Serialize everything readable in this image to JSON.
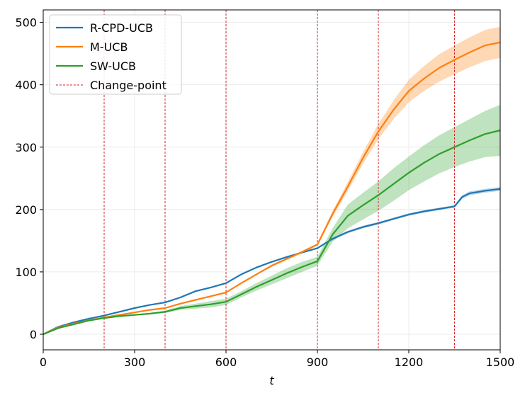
{
  "chart_data": {
    "type": "line",
    "title": "",
    "xlabel": "t",
    "ylabel": "",
    "xlim": [
      0,
      1500
    ],
    "ylim": [
      -25,
      520
    ],
    "x_ticks": [
      0,
      300,
      600,
      900,
      1200,
      1500
    ],
    "x_tick_labels": [
      "0",
      "300",
      "600",
      "900",
      "1200",
      "1500"
    ],
    "y_ticks": [
      0,
      100,
      200,
      300,
      400,
      500
    ],
    "y_tick_labels": [
      "0",
      "100",
      "200",
      "300",
      "400",
      "500"
    ],
    "grid": true,
    "legend_position": "top-left",
    "change_point_label": "Change-point",
    "change_point_color": "#d62728",
    "change_points": [
      200,
      400,
      600,
      900,
      1100,
      1350
    ],
    "series": [
      {
        "name": "R-CPD-UCB",
        "color": "#1f77b4",
        "x": [
          0,
          50,
          100,
          150,
          200,
          250,
          300,
          350,
          400,
          450,
          500,
          550,
          600,
          650,
          700,
          750,
          800,
          850,
          900,
          950,
          1000,
          1050,
          1100,
          1150,
          1200,
          1250,
          1300,
          1350,
          1375,
          1400,
          1450,
          1500
        ],
        "y": [
          0,
          12,
          19,
          25,
          30,
          36,
          42,
          47,
          51,
          59,
          69,
          75,
          82,
          96,
          107,
          116,
          124,
          131,
          138,
          153,
          164,
          172,
          178,
          185,
          192,
          197,
          201,
          205,
          220,
          226,
          230,
          233
        ],
        "lower": [
          0,
          11,
          18,
          24,
          29,
          35,
          41,
          46,
          50,
          58,
          68,
          74,
          81,
          95,
          106,
          115,
          123,
          130,
          137,
          151,
          162,
          170,
          176,
          183,
          190,
          195,
          199,
          203,
          217,
          223,
          227,
          230
        ],
        "upper": [
          0,
          13,
          20,
          26,
          31,
          37,
          43,
          48,
          52,
          60,
          70,
          76,
          83,
          97,
          108,
          117,
          125,
          132,
          139,
          155,
          166,
          174,
          180,
          187,
          194,
          199,
          203,
          207,
          223,
          229,
          233,
          236
        ]
      },
      {
        "name": "M-UCB",
        "color": "#ff7f0e",
        "x": [
          0,
          50,
          100,
          150,
          200,
          250,
          300,
          350,
          400,
          450,
          500,
          550,
          600,
          650,
          700,
          750,
          800,
          850,
          900,
          950,
          1000,
          1050,
          1100,
          1150,
          1200,
          1250,
          1300,
          1350,
          1400,
          1450,
          1500
        ],
        "y": [
          0,
          11,
          17,
          22,
          27,
          31,
          35,
          39,
          42,
          49,
          55,
          61,
          67,
          82,
          96,
          110,
          121,
          132,
          144,
          193,
          237,
          283,
          325,
          360,
          390,
          410,
          427,
          440,
          452,
          463,
          468
        ],
        "lower": [
          0,
          10,
          16,
          21,
          26,
          30,
          34,
          38,
          41,
          48,
          54,
          60,
          66,
          81,
          95,
          108,
          119,
          130,
          142,
          188,
          230,
          274,
          313,
          345,
          372,
          390,
          405,
          417,
          428,
          438,
          443
        ],
        "upper": [
          0,
          12,
          18,
          23,
          28,
          32,
          36,
          40,
          43,
          50,
          56,
          62,
          68,
          83,
          97,
          112,
          123,
          134,
          146,
          198,
          244,
          292,
          337,
          375,
          408,
          430,
          449,
          463,
          476,
          488,
          493
        ]
      },
      {
        "name": "SW-UCB",
        "color": "#2ca02c",
        "x": [
          0,
          50,
          100,
          150,
          200,
          250,
          300,
          350,
          400,
          450,
          500,
          550,
          600,
          650,
          700,
          750,
          800,
          850,
          900,
          950,
          1000,
          1050,
          1100,
          1150,
          1200,
          1250,
          1300,
          1350,
          1400,
          1450,
          1500
        ],
        "y": [
          0,
          10,
          16,
          22,
          26,
          29,
          31,
          33,
          36,
          42,
          45,
          48,
          52,
          64,
          76,
          87,
          98,
          108,
          117,
          160,
          190,
          207,
          223,
          241,
          259,
          275,
          289,
          300,
          311,
          321,
          327
        ],
        "lower": [
          0,
          9,
          15,
          21,
          25,
          28,
          30,
          32,
          34,
          39,
          41,
          43,
          47,
          59,
          70,
          80,
          90,
          100,
          110,
          148,
          170,
          184,
          198,
          214,
          231,
          245,
          258,
          268,
          277,
          284,
          286
        ],
        "upper": [
          0,
          11,
          17,
          23,
          27,
          30,
          32,
          34,
          38,
          45,
          49,
          53,
          57,
          69,
          82,
          94,
          106,
          116,
          124,
          170,
          208,
          227,
          245,
          266,
          285,
          303,
          319,
          332,
          345,
          358,
          368
        ]
      }
    ]
  }
}
